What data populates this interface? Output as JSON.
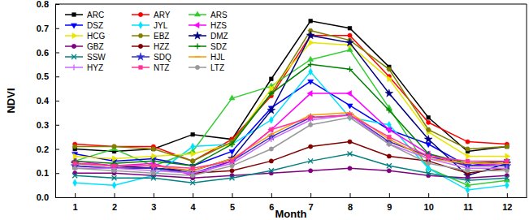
{
  "chart_data": {
    "type": "line",
    "x_label": "Month",
    "y_label": "NDVI",
    "x": [
      1,
      2,
      3,
      4,
      5,
      6,
      7,
      8,
      9,
      10,
      11,
      12
    ],
    "xlim": [
      0.5,
      12.5
    ],
    "xticks": [
      1,
      2,
      3,
      4,
      5,
      6,
      7,
      8,
      9,
      10,
      11,
      12
    ],
    "ylim": [
      0,
      0.8
    ],
    "yticks": [
      {
        "value": 0,
        "label": "0.0"
      },
      0.1,
      0.2,
      0.3,
      0.4,
      0.5,
      0.6,
      0.7,
      0.8
    ],
    "grid": false,
    "legend": "upper left",
    "series": [
      {
        "name": "ARC",
        "color": "#000000",
        "marker": "square",
        "values": [
          0.2,
          0.19,
          0.2,
          0.26,
          0.24,
          0.49,
          0.73,
          0.7,
          0.54,
          0.33,
          0.19,
          0.21
        ]
      },
      {
        "name": "ARY",
        "color": "#ff0000",
        "marker": "circle",
        "values": [
          0.22,
          0.21,
          0.21,
          0.15,
          0.24,
          0.42,
          0.67,
          0.67,
          0.5,
          0.31,
          0.23,
          0.22
        ]
      },
      {
        "name": "ARS",
        "color": "#33cc33",
        "marker": "triangle-up",
        "values": [
          0.15,
          0.2,
          0.13,
          0.19,
          0.41,
          0.46,
          0.57,
          0.61,
          0.37,
          0.12,
          0.05,
          0.07
        ]
      },
      {
        "name": "DSZ",
        "color": "#0000ff",
        "marker": "triangle-down",
        "values": [
          0.18,
          0.15,
          0.16,
          0.13,
          0.19,
          0.37,
          0.48,
          0.38,
          0.28,
          0.22,
          0.13,
          0.15
        ]
      },
      {
        "name": "JYL",
        "color": "#00e0ff",
        "marker": "diamond",
        "values": [
          0.06,
          0.05,
          0.09,
          0.21,
          0.22,
          0.32,
          0.52,
          0.33,
          0.3,
          0.12,
          0.03,
          0.05
        ]
      },
      {
        "name": "HZS",
        "color": "#ff00ff",
        "marker": "triangle-left",
        "values": [
          0.15,
          0.13,
          0.14,
          0.09,
          0.15,
          0.28,
          0.43,
          0.43,
          0.28,
          0.18,
          0.13,
          0.14
        ]
      },
      {
        "name": "HCG",
        "color": "#e6e600",
        "marker": "triangle-right",
        "values": [
          0.17,
          0.16,
          0.17,
          0.18,
          0.22,
          0.45,
          0.64,
          0.63,
          0.49,
          0.27,
          0.17,
          0.17
        ]
      },
      {
        "name": "EBZ",
        "color": "#808000",
        "marker": "hexagon",
        "values": [
          0.21,
          0.21,
          0.2,
          0.15,
          0.23,
          0.43,
          0.69,
          0.65,
          0.53,
          0.28,
          0.2,
          0.21
        ]
      },
      {
        "name": "DMZ",
        "color": "#000080",
        "marker": "star",
        "values": [
          0.14,
          0.13,
          0.12,
          0.11,
          0.16,
          0.36,
          0.67,
          0.64,
          0.43,
          0.24,
          0.09,
          0.14
        ]
      },
      {
        "name": "GBZ",
        "color": "#800080",
        "marker": "circle",
        "values": [
          0.1,
          0.1,
          0.09,
          0.08,
          0.09,
          0.1,
          0.11,
          0.12,
          0.11,
          0.09,
          0.08,
          0.09
        ]
      },
      {
        "name": "HZZ",
        "color": "#800000",
        "marker": "circle",
        "values": [
          0.13,
          0.12,
          0.12,
          0.1,
          0.11,
          0.15,
          0.21,
          0.23,
          0.17,
          0.15,
          0.1,
          0.12
        ]
      },
      {
        "name": "SDZ",
        "color": "#008000",
        "marker": "plus",
        "values": [
          0.15,
          0.14,
          0.15,
          0.13,
          0.22,
          0.43,
          0.55,
          0.53,
          0.36,
          0.18,
          0.14,
          0.15
        ]
      },
      {
        "name": "SSW",
        "color": "#008080",
        "marker": "cross",
        "values": [
          0.09,
          0.08,
          0.08,
          0.06,
          0.08,
          0.11,
          0.15,
          0.18,
          0.13,
          0.1,
          0.07,
          0.08
        ]
      },
      {
        "name": "SDQ",
        "color": "#3333cc",
        "marker": "star",
        "values": [
          0.13,
          0.12,
          0.12,
          0.1,
          0.15,
          0.25,
          0.33,
          0.34,
          0.23,
          0.17,
          0.13,
          0.13
        ]
      },
      {
        "name": "HJL",
        "color": "#ff9900",
        "marker": "dash",
        "values": [
          0.14,
          0.13,
          0.13,
          0.11,
          0.16,
          0.26,
          0.34,
          0.35,
          0.24,
          0.16,
          0.14,
          0.14
        ]
      },
      {
        "name": "HYZ",
        "color": "#cc66ff",
        "marker": "bar",
        "values": [
          0.12,
          0.12,
          0.11,
          0.1,
          0.14,
          0.24,
          0.32,
          0.34,
          0.22,
          0.16,
          0.12,
          0.12
        ]
      },
      {
        "name": "NTZ",
        "color": "#ff3399",
        "marker": "square",
        "values": [
          0.14,
          0.13,
          0.13,
          0.12,
          0.15,
          0.28,
          0.33,
          0.34,
          0.25,
          0.17,
          0.15,
          0.15
        ]
      },
      {
        "name": "LTZ",
        "color": "#999999",
        "marker": "circle",
        "values": [
          0.12,
          0.11,
          0.1,
          0.09,
          0.13,
          0.2,
          0.3,
          0.33,
          0.22,
          0.14,
          0.11,
          0.11
        ]
      }
    ]
  }
}
